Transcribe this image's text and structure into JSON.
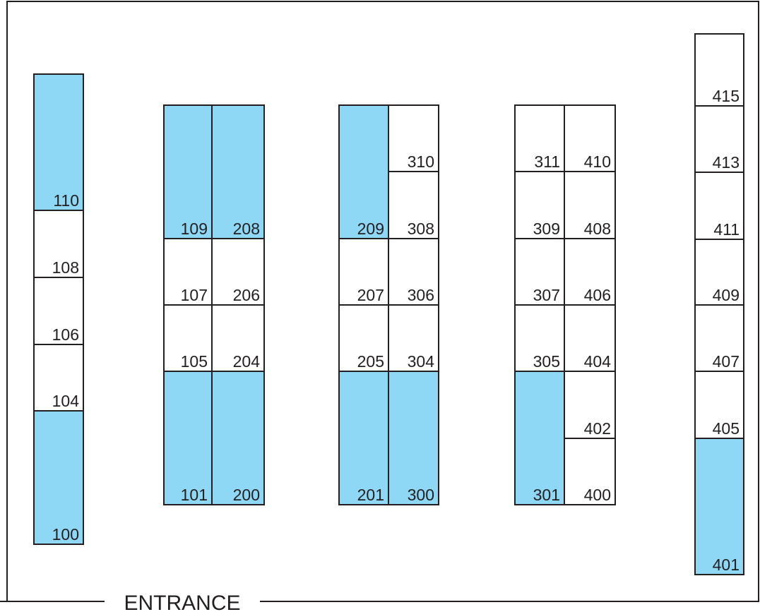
{
  "colors": {
    "occupied": "#8fd8f5",
    "vacant": "#ffffff",
    "line": "#231f20"
  },
  "entrance_label": "ENTRANCE",
  "rooms": [
    {
      "label": "110",
      "occupied": true
    },
    {
      "label": "108",
      "occupied": false
    },
    {
      "label": "106",
      "occupied": false
    },
    {
      "label": "104",
      "occupied": false
    },
    {
      "label": "100",
      "occupied": true
    },
    {
      "label": "109",
      "occupied": true
    },
    {
      "label": "107",
      "occupied": false
    },
    {
      "label": "105",
      "occupied": false
    },
    {
      "label": "101",
      "occupied": true
    },
    {
      "label": "208",
      "occupied": true
    },
    {
      "label": "206",
      "occupied": false
    },
    {
      "label": "204",
      "occupied": false
    },
    {
      "label": "200",
      "occupied": true
    },
    {
      "label": "209",
      "occupied": true
    },
    {
      "label": "207",
      "occupied": false
    },
    {
      "label": "205",
      "occupied": false
    },
    {
      "label": "201",
      "occupied": true
    },
    {
      "label": "310",
      "occupied": false
    },
    {
      "label": "308",
      "occupied": false
    },
    {
      "label": "306",
      "occupied": false
    },
    {
      "label": "304",
      "occupied": false
    },
    {
      "label": "300",
      "occupied": true
    },
    {
      "label": "311",
      "occupied": false
    },
    {
      "label": "309",
      "occupied": false
    },
    {
      "label": "307",
      "occupied": false
    },
    {
      "label": "305",
      "occupied": false
    },
    {
      "label": "301",
      "occupied": true
    },
    {
      "label": "410",
      "occupied": false
    },
    {
      "label": "408",
      "occupied": false
    },
    {
      "label": "406",
      "occupied": false
    },
    {
      "label": "404",
      "occupied": false
    },
    {
      "label": "402",
      "occupied": false
    },
    {
      "label": "400",
      "occupied": false
    },
    {
      "label": "415",
      "occupied": false
    },
    {
      "label": "413",
      "occupied": false
    },
    {
      "label": "411",
      "occupied": false
    },
    {
      "label": "409",
      "occupied": false
    },
    {
      "label": "407",
      "occupied": false
    },
    {
      "label": "405",
      "occupied": false
    },
    {
      "label": "401",
      "occupied": true
    }
  ]
}
